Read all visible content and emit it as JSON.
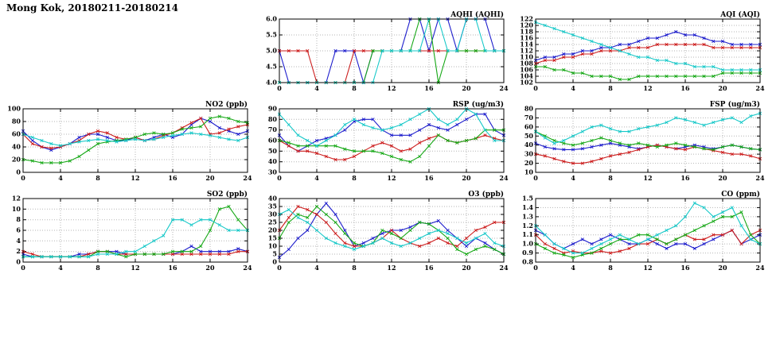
{
  "page": {
    "title": "Mong Kok, 20180211-20180214"
  },
  "chart_data": [
    {
      "type": "line",
      "title": "AQHI (AQHI)",
      "xlim": [
        0,
        24
      ],
      "xticks": [
        0,
        4,
        8,
        12,
        16,
        20,
        24
      ],
      "ylim": [
        4,
        6
      ],
      "yticks": [
        "4.0",
        "4.5",
        "5.0",
        "5.5",
        "6.0"
      ],
      "series": [
        {
          "name": "blue",
          "color": "#1c1ccc",
          "values": [
            5,
            4,
            4,
            4,
            4,
            4,
            5,
            5,
            5,
            4,
            5,
            5,
            5,
            5,
            6,
            6,
            5,
            6,
            6,
            5,
            6,
            6,
            6,
            5,
            5
          ]
        },
        {
          "name": "red",
          "color": "#cc1c1c",
          "values": [
            5,
            5,
            5,
            5,
            4,
            4,
            4,
            4,
            5,
            5,
            5,
            5,
            5,
            5,
            5,
            5,
            5,
            5,
            5,
            5,
            5,
            5,
            5,
            5,
            5
          ]
        },
        {
          "name": "green",
          "color": "#16a816",
          "values": [
            4,
            4,
            4,
            4,
            4,
            4,
            4,
            4,
            4,
            4,
            5,
            5,
            5,
            5,
            5,
            6,
            6,
            4,
            5,
            5,
            5,
            5,
            5,
            5,
            5
          ]
        },
        {
          "name": "cyan",
          "color": "#16c8c8",
          "values": [
            4,
            4,
            4,
            4,
            4,
            4,
            4,
            4,
            4,
            4,
            4,
            5,
            5,
            5,
            5,
            5,
            6,
            6,
            5,
            5,
            6,
            6,
            5,
            5,
            5
          ]
        }
      ]
    },
    {
      "type": "line",
      "title": "AQI (AQI)",
      "xlim": [
        0,
        24
      ],
      "xticks": [
        0,
        4,
        8,
        12,
        16,
        20,
        24
      ],
      "ylim": [
        102,
        122
      ],
      "yticks": [
        "102",
        "104",
        "106",
        "108",
        "110",
        "112",
        "114",
        "116",
        "118",
        "120",
        "122"
      ],
      "series": [
        {
          "name": "blue",
          "color": "#1c1ccc",
          "values": [
            109,
            110,
            110,
            111,
            111,
            112,
            112,
            113,
            113,
            114,
            114,
            115,
            116,
            116,
            117,
            118,
            117,
            117,
            116,
            115,
            115,
            114,
            114,
            114,
            114
          ]
        },
        {
          "name": "red",
          "color": "#cc1c1c",
          "values": [
            108,
            109,
            109,
            110,
            110,
            111,
            111,
            112,
            112,
            112,
            113,
            113,
            113,
            114,
            114,
            114,
            114,
            114,
            114,
            113,
            113,
            113,
            113,
            113,
            113
          ]
        },
        {
          "name": "green",
          "color": "#16a816",
          "values": [
            107,
            107,
            106,
            106,
            105,
            105,
            104,
            104,
            104,
            103,
            103,
            104,
            104,
            104,
            104,
            104,
            104,
            104,
            104,
            104,
            105,
            105,
            105,
            105,
            105
          ]
        },
        {
          "name": "cyan",
          "color": "#16c8c8",
          "values": [
            121,
            120,
            119,
            118,
            117,
            116,
            115,
            114,
            113,
            112,
            111,
            110,
            110,
            109,
            109,
            108,
            108,
            107,
            107,
            107,
            106,
            106,
            106,
            106,
            106
          ]
        }
      ]
    },
    {
      "type": "line",
      "title": "NO2 (ppb)",
      "xlim": [
        0,
        24
      ],
      "xticks": [
        0,
        4,
        8,
        12,
        16,
        20,
        24
      ],
      "ylim": [
        0,
        100
      ],
      "yticks": [
        "0",
        "20",
        "40",
        "60",
        "80",
        "100"
      ],
      "series": [
        {
          "name": "blue",
          "color": "#1c1ccc",
          "values": [
            65,
            50,
            40,
            35,
            40,
            45,
            55,
            60,
            60,
            55,
            50,
            50,
            55,
            50,
            55,
            60,
            55,
            60,
            75,
            85,
            80,
            70,
            65,
            60,
            65
          ]
        },
        {
          "name": "red",
          "color": "#cc1c1c",
          "values": [
            60,
            45,
            40,
            38,
            40,
            45,
            50,
            60,
            65,
            62,
            55,
            52,
            55,
            50,
            52,
            58,
            62,
            70,
            78,
            85,
            60,
            62,
            68,
            72,
            75
          ]
        },
        {
          "name": "green",
          "color": "#16a816",
          "values": [
            20,
            18,
            15,
            15,
            15,
            18,
            25,
            35,
            45,
            48,
            50,
            52,
            55,
            60,
            62,
            60,
            62,
            68,
            70,
            72,
            85,
            88,
            85,
            80,
            78
          ]
        },
        {
          "name": "cyan",
          "color": "#16c8c8",
          "values": [
            60,
            55,
            50,
            45,
            42,
            45,
            48,
            50,
            52,
            50,
            48,
            50,
            52,
            50,
            52,
            55,
            58,
            60,
            62,
            60,
            58,
            55,
            52,
            50,
            55
          ]
        }
      ]
    },
    {
      "type": "line",
      "title": "RSP (ug/m3)",
      "xlim": [
        0,
        24
      ],
      "xticks": [
        0,
        4,
        8,
        12,
        16,
        20,
        24
      ],
      "ylim": [
        30,
        90
      ],
      "yticks": [
        "30",
        "40",
        "50",
        "60",
        "70",
        "80",
        "90"
      ],
      "series": [
        {
          "name": "blue",
          "color": "#1c1ccc",
          "values": [
            65,
            55,
            50,
            55,
            60,
            62,
            65,
            70,
            78,
            80,
            80,
            70,
            65,
            65,
            65,
            70,
            75,
            72,
            70,
            75,
            80,
            85,
            85,
            70,
            65
          ]
        },
        {
          "name": "red",
          "color": "#cc1c1c",
          "values": [
            60,
            55,
            50,
            50,
            48,
            45,
            42,
            42,
            45,
            50,
            55,
            58,
            55,
            50,
            52,
            58,
            62,
            65,
            60,
            58,
            60,
            62,
            65,
            62,
            60
          ]
        },
        {
          "name": "green",
          "color": "#16a816",
          "values": [
            60,
            58,
            55,
            55,
            55,
            55,
            55,
            52,
            50,
            50,
            50,
            48,
            45,
            42,
            40,
            45,
            55,
            65,
            60,
            58,
            60,
            62,
            70,
            70,
            70
          ]
        },
        {
          "name": "cyan",
          "color": "#16c8c8",
          "values": [
            85,
            75,
            65,
            60,
            55,
            60,
            65,
            75,
            80,
            75,
            72,
            70,
            72,
            75,
            80,
            85,
            90,
            80,
            75,
            80,
            90,
            85,
            70,
            60,
            60
          ]
        }
      ]
    },
    {
      "type": "line",
      "title": "FSP (ug/m3)",
      "xlim": [
        0,
        24
      ],
      "xticks": [
        0,
        4,
        8,
        12,
        16,
        20,
        24
      ],
      "ylim": [
        10,
        80
      ],
      "yticks": [
        "10",
        "20",
        "30",
        "40",
        "50",
        "60",
        "70",
        "80"
      ],
      "series": [
        {
          "name": "blue",
          "color": "#1c1ccc",
          "values": [
            42,
            38,
            36,
            35,
            35,
            36,
            38,
            40,
            42,
            40,
            38,
            36,
            38,
            40,
            38,
            36,
            38,
            40,
            38,
            36,
            38,
            40,
            38,
            36,
            35
          ]
        },
        {
          "name": "red",
          "color": "#cc1c1c",
          "values": [
            30,
            28,
            25,
            22,
            20,
            20,
            22,
            25,
            28,
            30,
            32,
            35,
            38,
            40,
            38,
            36,
            35,
            38,
            36,
            34,
            32,
            30,
            30,
            28,
            25
          ]
        },
        {
          "name": "green",
          "color": "#16a816",
          "values": [
            55,
            50,
            45,
            42,
            40,
            42,
            45,
            48,
            45,
            42,
            40,
            42,
            40,
            38,
            40,
            42,
            40,
            38,
            36,
            35,
            38,
            40,
            38,
            36,
            35
          ]
        },
        {
          "name": "cyan",
          "color": "#16c8c8",
          "values": [
            55,
            48,
            42,
            45,
            50,
            55,
            60,
            62,
            58,
            55,
            55,
            58,
            60,
            62,
            65,
            70,
            68,
            65,
            62,
            65,
            68,
            70,
            65,
            72,
            75
          ]
        }
      ]
    },
    {
      "type": "line",
      "title": "SO2 (ppb)",
      "xlim": [
        0,
        24
      ],
      "xticks": [
        0,
        4,
        8,
        12,
        16,
        20,
        24
      ],
      "ylim": [
        0,
        12
      ],
      "yticks": [
        "0",
        "2",
        "4",
        "6",
        "8",
        "10",
        "12"
      ],
      "series": [
        {
          "name": "blue",
          "color": "#1c1ccc",
          "values": [
            1.5,
            1,
            1,
            1,
            1,
            1,
            1.5,
            1.5,
            2,
            2,
            2,
            1.5,
            1.5,
            1.5,
            1.5,
            1.5,
            1.5,
            2,
            3,
            2,
            2,
            2,
            2,
            2.5,
            2
          ]
        },
        {
          "name": "red",
          "color": "#cc1c1c",
          "values": [
            2,
            1.5,
            1,
            1,
            1,
            1,
            1,
            1.5,
            2,
            2,
            1.5,
            1.5,
            1.5,
            1.5,
            1.5,
            1.5,
            1.5,
            1.5,
            1.5,
            1.5,
            1.5,
            1.5,
            1.5,
            2,
            2
          ]
        },
        {
          "name": "green",
          "color": "#16a816",
          "values": [
            1,
            1,
            1,
            1,
            1,
            1,
            1,
            1,
            2,
            2,
            1.5,
            1,
            1.5,
            1.5,
            1.5,
            1.5,
            2,
            2,
            2,
            3,
            6,
            10,
            10.5,
            8,
            6
          ]
        },
        {
          "name": "cyan",
          "color": "#16c8c8",
          "values": [
            1,
            1,
            1,
            1,
            1,
            1,
            1,
            1,
            1.5,
            1.5,
            1.5,
            2,
            2,
            3,
            4,
            5,
            8,
            8,
            7,
            8,
            8,
            7,
            6,
            6,
            6
          ]
        }
      ]
    },
    {
      "type": "line",
      "title": "O3 (ppb)",
      "xlim": [
        0,
        24
      ],
      "xticks": [
        0,
        4,
        8,
        12,
        16,
        20,
        24
      ],
      "ylim": [
        0,
        40
      ],
      "yticks": [
        "0",
        "5",
        "10",
        "15",
        "20",
        "25",
        "30",
        "35",
        "40"
      ],
      "series": [
        {
          "name": "blue",
          "color": "#1c1ccc",
          "values": [
            3,
            8,
            15,
            20,
            30,
            37,
            30,
            20,
            10,
            12,
            15,
            18,
            20,
            20,
            22,
            25,
            24,
            26,
            20,
            15,
            10,
            15,
            12,
            8,
            5
          ]
        },
        {
          "name": "red",
          "color": "#cc1c1c",
          "values": [
            20,
            28,
            35,
            33,
            30,
            25,
            18,
            12,
            10,
            10,
            12,
            15,
            20,
            15,
            12,
            10,
            12,
            15,
            12,
            10,
            15,
            20,
            22,
            25,
            25
          ]
        },
        {
          "name": "green",
          "color": "#16a816",
          "values": [
            15,
            25,
            30,
            28,
            35,
            30,
            25,
            18,
            12,
            10,
            12,
            20,
            18,
            15,
            20,
            25,
            24,
            20,
            15,
            8,
            5,
            8,
            10,
            8,
            5
          ]
        },
        {
          "name": "cyan",
          "color": "#16c8c8",
          "values": [
            30,
            33,
            28,
            25,
            20,
            15,
            12,
            10,
            8,
            10,
            12,
            15,
            12,
            10,
            12,
            15,
            18,
            20,
            18,
            15,
            12,
            15,
            18,
            12,
            10
          ]
        }
      ]
    },
    {
      "type": "line",
      "title": "CO (ppm)",
      "xlim": [
        0,
        24
      ],
      "xticks": [
        0,
        4,
        8,
        12,
        16,
        20,
        24
      ],
      "ylim": [
        0.8,
        1.5
      ],
      "yticks": [
        "0.8",
        "0.9",
        "1.0",
        "1.1",
        "1.2",
        "1.3",
        "1.4",
        "1.5"
      ],
      "series": [
        {
          "name": "blue",
          "color": "#1c1ccc",
          "values": [
            1.15,
            1.1,
            1.0,
            0.95,
            1.0,
            1.05,
            1.0,
            1.05,
            1.1,
            1.05,
            1.0,
            1.0,
            1.05,
            1.0,
            0.95,
            1.0,
            1.0,
            0.95,
            1.0,
            1.05,
            1.1,
            1.15,
            1.0,
            1.05,
            1.1
          ]
        },
        {
          "name": "red",
          "color": "#cc1c1c",
          "values": [
            1.1,
            1.0,
            0.95,
            0.9,
            0.92,
            0.9,
            0.9,
            0.92,
            0.9,
            0.92,
            0.95,
            1.0,
            1.0,
            1.05,
            1.0,
            1.05,
            1.1,
            1.05,
            1.05,
            1.1,
            1.1,
            1.15,
            1.0,
            1.1,
            1.15
          ]
        },
        {
          "name": "green",
          "color": "#16a816",
          "values": [
            1.0,
            0.95,
            0.9,
            0.88,
            0.85,
            0.88,
            0.9,
            0.95,
            1.0,
            1.05,
            1.05,
            1.1,
            1.1,
            1.05,
            1.0,
            1.05,
            1.1,
            1.15,
            1.2,
            1.25,
            1.3,
            1.3,
            1.35,
            1.1,
            1.0
          ]
        },
        {
          "name": "cyan",
          "color": "#16c8c8",
          "values": [
            1.2,
            1.1,
            1.0,
            0.95,
            0.9,
            0.9,
            0.95,
            1.0,
            1.05,
            1.1,
            1.05,
            1.0,
            1.05,
            1.1,
            1.15,
            1.2,
            1.3,
            1.45,
            1.4,
            1.3,
            1.35,
            1.4,
            1.2,
            1.05,
            1.0
          ]
        }
      ]
    }
  ]
}
